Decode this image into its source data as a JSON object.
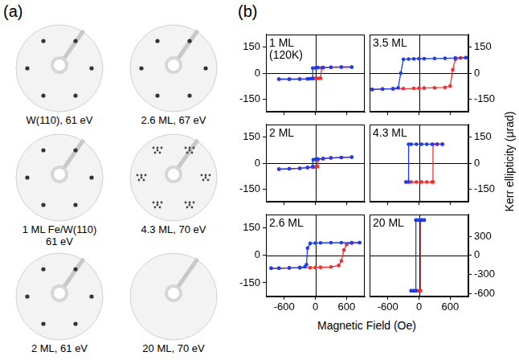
{
  "panel_labels": [
    "(a)",
    "(b)"
  ],
  "leed_images": [
    {
      "caption_lines": [
        "W(110), 61 eV"
      ]
    },
    {
      "caption_lines": [
        "2.6 ML, 67 eV"
      ]
    },
    {
      "caption_lines": [
        "1 ML Fe/W(110)",
        "61 eV"
      ]
    },
    {
      "caption_lines": [
        "4.3 ML, 70 eV"
      ]
    },
    {
      "caption_lines": [
        "2 ML, 61 eV"
      ]
    },
    {
      "caption_lines": [
        "20 ML, 70 eV"
      ]
    }
  ],
  "x_label": "Magnetic Field (Oe)",
  "y_label": "Kerr ellipticity (μrad)",
  "chart_data": [
    {
      "type": "line",
      "title": "1 ML (120K)",
      "xlim": [
        -950,
        950
      ],
      "xticks": [
        -600,
        0,
        600
      ],
      "ylim": [
        -225,
        225
      ],
      "yticks": [
        -150,
        0,
        150
      ],
      "grid": false,
      "tick_labels": "y",
      "series": [
        {
          "color": "#1a3cff",
          "marker": "circle",
          "line_style": "solid",
          "x": [
            700,
            500,
            300,
            150,
            50,
            0,
            -50,
            -50,
            -100,
            -150,
            -300,
            -500,
            -700
          ],
          "values": [
            35,
            35,
            34,
            33,
            32,
            30,
            29,
            -30,
            -33,
            -34,
            -35,
            -35,
            -35
          ]
        },
        {
          "color": "#ff2a2a",
          "marker": "circle",
          "line_style": "solid",
          "x": [
            -700,
            -500,
            -300,
            -150,
            -50,
            0,
            50,
            100,
            120,
            150,
            300,
            500,
            700
          ],
          "values": [
            -35,
            -35,
            -34,
            -33,
            -32,
            -31,
            -30,
            -29,
            30,
            32,
            34,
            35,
            35
          ]
        }
      ]
    },
    {
      "type": "line",
      "title": "2 ML",
      "xlim": [
        -950,
        950
      ],
      "xticks": [
        -600,
        0,
        600
      ],
      "ylim": [
        -225,
        225
      ],
      "yticks": [
        -150,
        0,
        150
      ],
      "grid": false,
      "tick_labels": "y",
      "series": [
        {
          "color": "#1a3cff",
          "marker": "circle",
          "line_style": "solid",
          "x": [
            700,
            500,
            300,
            150,
            50,
            0,
            -40,
            -50,
            -150,
            -300,
            -500,
            -700
          ],
          "values": [
            35,
            33,
            30,
            27,
            24,
            22,
            20,
            -20,
            -25,
            -30,
            -33,
            -35
          ]
        },
        {
          "color": "#ff2a2a",
          "marker": "circle",
          "line_style": "solid",
          "x": [
            -700,
            -500,
            -300,
            -150,
            -50,
            0,
            40,
            50,
            150,
            300,
            500,
            700
          ],
          "values": [
            -35,
            -33,
            -30,
            -27,
            -24,
            -22,
            -20,
            20,
            25,
            30,
            33,
            35
          ]
        }
      ]
    },
    {
      "type": "line",
      "title": "2.6 ML",
      "xlim": [
        -950,
        950
      ],
      "xticks": [
        -600,
        0,
        600
      ],
      "ylim": [
        -225,
        225
      ],
      "yticks": [
        -150,
        0,
        150
      ],
      "grid": false,
      "tick_labels": true,
      "series": [
        {
          "color": "#1a3cff",
          "marker": "circle",
          "line_style": "solid",
          "x": [
            850,
            700,
            500,
            300,
            100,
            0,
            -100,
            -150,
            -170,
            -200,
            -300,
            -500,
            -700,
            -850
          ],
          "values": [
            70,
            70,
            70,
            70,
            69,
            68,
            66,
            40,
            -50,
            -62,
            -66,
            -68,
            -70,
            -70
          ]
        },
        {
          "color": "#ff2a2a",
          "marker": "circle",
          "line_style": "solid",
          "x": [
            -850,
            -700,
            -500,
            -300,
            -100,
            0,
            100,
            300,
            450,
            500,
            550,
            600,
            700,
            850
          ],
          "values": [
            -70,
            -70,
            -69,
            -68,
            -67,
            -66,
            -65,
            -63,
            -55,
            -30,
            30,
            60,
            68,
            70
          ]
        }
      ]
    },
    {
      "type": "line",
      "title": "3.5 ML",
      "xlim": [
        -950,
        950
      ],
      "xticks": [
        -600,
        0,
        600
      ],
      "ylim": [
        -225,
        225
      ],
      "yticks": [
        -150,
        0,
        150
      ],
      "grid": false,
      "tick_labels": "y",
      "series": [
        {
          "color": "#1a3cff",
          "marker": "circle",
          "line_style": "solid",
          "x": [
            900,
            700,
            500,
            300,
            100,
            0,
            -100,
            -200,
            -300,
            -350,
            -400,
            -500,
            -700,
            -900
          ],
          "values": [
            90,
            88,
            86,
            85,
            84,
            84,
            83,
            82,
            80,
            0,
            -85,
            -90,
            -92,
            -95
          ]
        },
        {
          "color": "#ff2a2a",
          "marker": "circle",
          "line_style": "solid",
          "x": [
            -900,
            -700,
            -500,
            -300,
            -100,
            0,
            100,
            300,
            500,
            600,
            650,
            700,
            800,
            900
          ],
          "values": [
            -95,
            -93,
            -92,
            -90,
            -89,
            -88,
            -87,
            -85,
            -83,
            -75,
            20,
            80,
            88,
            90
          ]
        }
      ]
    },
    {
      "type": "line",
      "title": "4.3 ML",
      "xlim": [
        -950,
        950
      ],
      "xticks": [
        -600,
        0,
        600
      ],
      "ylim": [
        -225,
        225
      ],
      "yticks": [
        -150,
        0,
        150
      ],
      "grid": false,
      "tick_labels": "y",
      "series": [
        {
          "color": "#1a3cff",
          "marker": "circle",
          "line_style": "solid",
          "x": [
            450,
            350,
            250,
            150,
            50,
            -50,
            -150,
            -200,
            -200,
            -250
          ],
          "values": [
            110,
            110,
            110,
            110,
            110,
            110,
            110,
            110,
            -110,
            -110
          ]
        },
        {
          "color": "#ff2a2a",
          "marker": "circle",
          "line_style": "solid",
          "x": [
            -250,
            -150,
            -50,
            50,
            150,
            250,
            270,
            270,
            350,
            450
          ],
          "values": [
            -110,
            -110,
            -110,
            -110,
            -110,
            -110,
            -110,
            110,
            110,
            110
          ]
        }
      ]
    },
    {
      "type": "line",
      "title": "20 ML",
      "xlim": [
        -950,
        950
      ],
      "xticks": [
        -600,
        0,
        600
      ],
      "ylim": [
        -650,
        650
      ],
      "yticks": [
        -600,
        -300,
        0,
        300
      ],
      "grid": false,
      "tick_labels": true,
      "series": [
        {
          "color": "#1a3cff",
          "marker": "circle",
          "line_style": "solid",
          "x": [
            100,
            50,
            0,
            -50,
            -60,
            -60,
            -100,
            -150
          ],
          "values": [
            560,
            560,
            560,
            560,
            560,
            -560,
            -560,
            -560
          ]
        },
        {
          "color": "#ff2a2a",
          "marker": "circle",
          "line_style": "solid",
          "x": [
            -150,
            -100,
            -50,
            0,
            30,
            30,
            60,
            100
          ],
          "values": [
            -560,
            -560,
            -560,
            -560,
            -560,
            560,
            560,
            560
          ]
        }
      ]
    }
  ]
}
